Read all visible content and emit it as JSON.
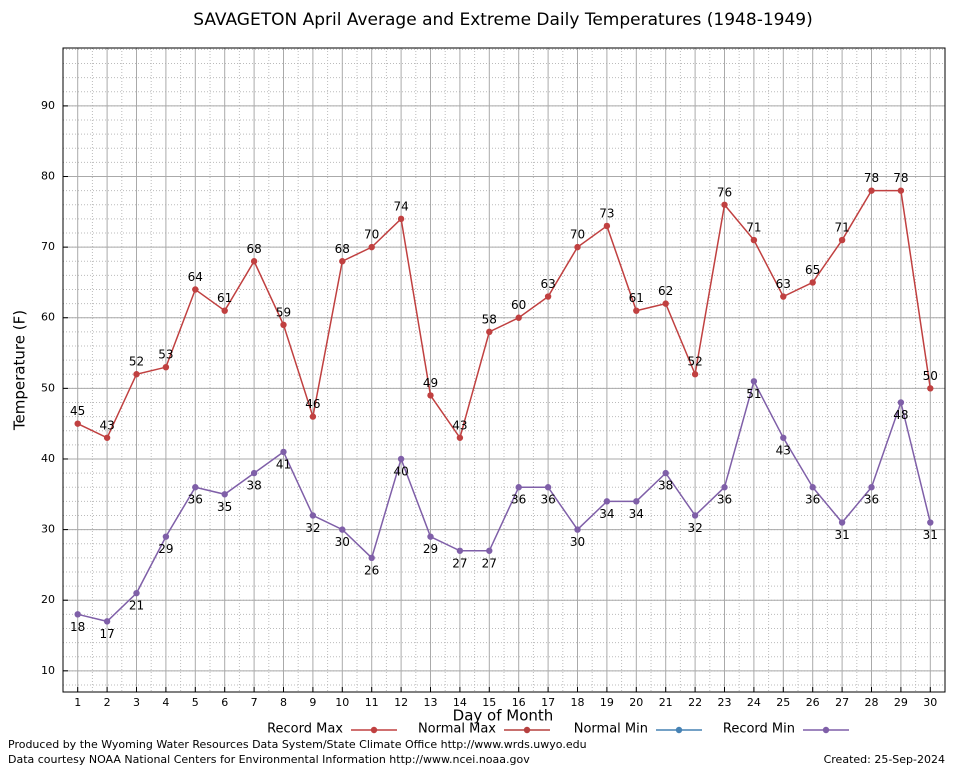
{
  "chart_data": {
    "type": "line",
    "title": "SAVAGETON April Average and Extreme Daily Temperatures (1948-1949)",
    "xlabel": "Day of Month",
    "ylabel": "Temperature (F)",
    "x": [
      1,
      2,
      3,
      4,
      5,
      6,
      7,
      8,
      9,
      10,
      11,
      12,
      13,
      14,
      15,
      16,
      17,
      18,
      19,
      20,
      21,
      22,
      23,
      24,
      25,
      26,
      27,
      28,
      29,
      30
    ],
    "xlim": [
      0.5,
      30.5
    ],
    "xticks": [
      1,
      2,
      3,
      4,
      5,
      6,
      7,
      8,
      9,
      10,
      11,
      12,
      13,
      14,
      15,
      16,
      17,
      18,
      19,
      20,
      21,
      22,
      23,
      24,
      25,
      26,
      27,
      28,
      29,
      30
    ],
    "ylim": [
      7,
      98.2
    ],
    "yticks": [
      10,
      20,
      30,
      40,
      50,
      60,
      70,
      80,
      90
    ],
    "grid": true,
    "series": [
      {
        "name": "Record Max",
        "color": "#c04040",
        "values": [
          45,
          43,
          52,
          53,
          64,
          61,
          68,
          59,
          46,
          68,
          70,
          74,
          49,
          43,
          58,
          60,
          63,
          70,
          73,
          61,
          62,
          52,
          76,
          71,
          63,
          65,
          71,
          78,
          78,
          50
        ]
      },
      {
        "name": "Normal Max",
        "color": "#b5403f",
        "values": [
          null,
          null,
          null,
          null,
          null,
          null,
          null,
          null,
          null,
          null,
          null,
          null,
          null,
          null,
          null,
          null,
          null,
          null,
          null,
          null,
          null,
          null,
          null,
          null,
          null,
          null,
          null,
          null,
          null,
          null
        ]
      },
      {
        "name": "Normal Min",
        "color": "#4682b4",
        "values": [
          null,
          null,
          null,
          null,
          null,
          null,
          null,
          null,
          null,
          null,
          null,
          null,
          null,
          null,
          null,
          null,
          null,
          null,
          null,
          null,
          null,
          null,
          null,
          null,
          null,
          null,
          null,
          null,
          null,
          null
        ]
      },
      {
        "name": "Record Min",
        "color": "#7f5fa8",
        "values": [
          18,
          17,
          21,
          29,
          36,
          35,
          38,
          41,
          32,
          30,
          26,
          40,
          29,
          27,
          27,
          36,
          36,
          30,
          34,
          34,
          38,
          32,
          36,
          51,
          43,
          36,
          31,
          36,
          48,
          31
        ]
      }
    ],
    "footer": [
      "Produced by the Wyoming Water Resources Data System/State Climate Office http://www.wrds.uwyo.edu",
      "Data courtesy NOAA National Centers for Environmental Information http://www.ncei.noaa.gov"
    ],
    "created": "Created:  25-Sep-2024"
  }
}
